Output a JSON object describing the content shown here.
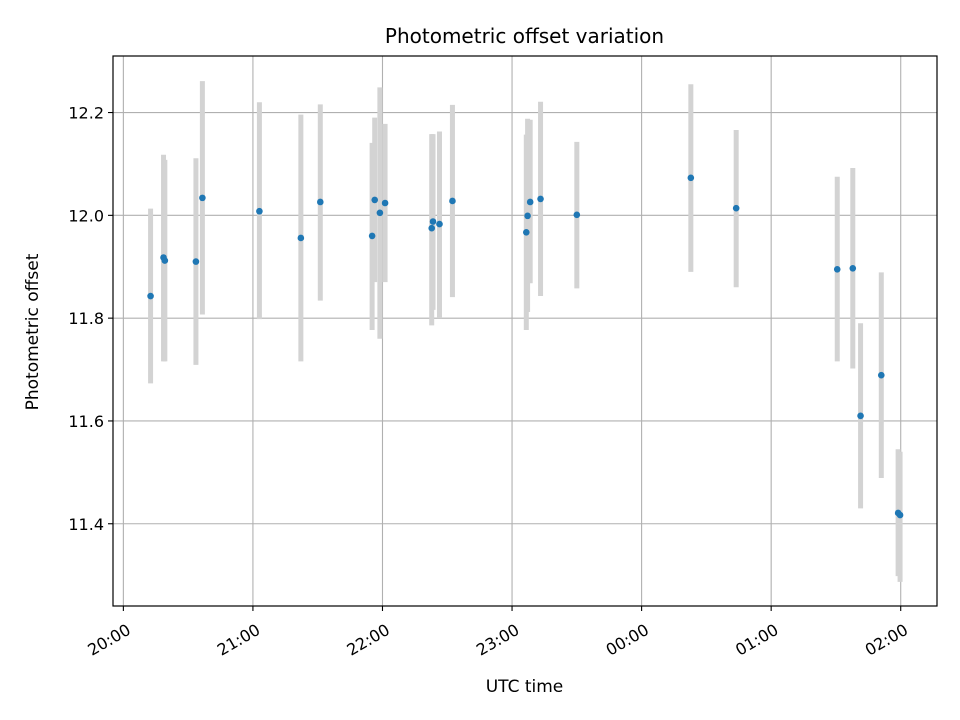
{
  "chart_data": {
    "type": "scatter",
    "title": "Photometric offset variation",
    "xlabel": "UTC time",
    "ylabel": "Photometric offset",
    "x_unit": "hours since 20:00 UTC",
    "xlim": [
      -0.08,
      6.28
    ],
    "ylim": [
      11.24,
      12.31
    ],
    "x_ticks": [
      {
        "value": 0,
        "label": "20:00"
      },
      {
        "value": 1,
        "label": "21:00"
      },
      {
        "value": 2,
        "label": "22:00"
      },
      {
        "value": 3,
        "label": "23:00"
      },
      {
        "value": 4,
        "label": "00:00"
      },
      {
        "value": 5,
        "label": "01:00"
      },
      {
        "value": 6,
        "label": "02:00"
      }
    ],
    "y_ticks": [
      {
        "value": 11.4,
        "label": "11.4"
      },
      {
        "value": 11.6,
        "label": "11.6"
      },
      {
        "value": 11.8,
        "label": "11.8"
      },
      {
        "value": 12.0,
        "label": "12.0"
      },
      {
        "value": 12.2,
        "label": "12.2"
      }
    ],
    "grid": true,
    "marker_color": "#1f77b4",
    "errorbar_color": "#d3d3d3",
    "points": [
      {
        "x": 0.21,
        "y": 11.843,
        "ylo": 11.673,
        "yhi": 12.013
      },
      {
        "x": 0.31,
        "y": 11.918,
        "ylo": 11.716,
        "yhi": 12.118
      },
      {
        "x": 0.32,
        "y": 11.912,
        "ylo": 11.716,
        "yhi": 12.108
      },
      {
        "x": 0.56,
        "y": 11.91,
        "ylo": 11.709,
        "yhi": 12.111
      },
      {
        "x": 0.61,
        "y": 12.034,
        "ylo": 11.807,
        "yhi": 12.261
      },
      {
        "x": 1.05,
        "y": 12.008,
        "ylo": 11.798,
        "yhi": 12.22
      },
      {
        "x": 1.37,
        "y": 11.956,
        "ylo": 11.716,
        "yhi": 12.196
      },
      {
        "x": 1.52,
        "y": 12.026,
        "ylo": 11.834,
        "yhi": 12.216
      },
      {
        "x": 1.92,
        "y": 11.96,
        "ylo": 11.777,
        "yhi": 12.141
      },
      {
        "x": 1.94,
        "y": 12.03,
        "ylo": 11.87,
        "yhi": 12.19
      },
      {
        "x": 1.98,
        "y": 12.005,
        "ylo": 11.76,
        "yhi": 12.249
      },
      {
        "x": 2.02,
        "y": 12.024,
        "ylo": 11.87,
        "yhi": 12.178
      },
      {
        "x": 2.38,
        "y": 11.975,
        "ylo": 11.786,
        "yhi": 12.158
      },
      {
        "x": 2.39,
        "y": 11.988,
        "ylo": 11.816,
        "yhi": 12.158
      },
      {
        "x": 2.44,
        "y": 11.983,
        "ylo": 11.8,
        "yhi": 12.163
      },
      {
        "x": 2.54,
        "y": 12.028,
        "ylo": 11.841,
        "yhi": 12.215
      },
      {
        "x": 3.11,
        "y": 11.967,
        "ylo": 11.777,
        "yhi": 12.157
      },
      {
        "x": 3.12,
        "y": 11.999,
        "ylo": 11.812,
        "yhi": 12.188
      },
      {
        "x": 3.14,
        "y": 12.026,
        "ylo": 11.868,
        "yhi": 12.186
      },
      {
        "x": 3.22,
        "y": 12.032,
        "ylo": 11.843,
        "yhi": 12.221
      },
      {
        "x": 3.5,
        "y": 12.001,
        "ylo": 11.858,
        "yhi": 12.143
      },
      {
        "x": 4.38,
        "y": 12.073,
        "ylo": 11.89,
        "yhi": 12.255
      },
      {
        "x": 4.73,
        "y": 12.014,
        "ylo": 11.86,
        "yhi": 12.166
      },
      {
        "x": 5.51,
        "y": 11.895,
        "ylo": 11.716,
        "yhi": 12.075
      },
      {
        "x": 5.63,
        "y": 11.897,
        "ylo": 11.702,
        "yhi": 12.092
      },
      {
        "x": 5.69,
        "y": 11.61,
        "ylo": 11.43,
        "yhi": 11.79
      },
      {
        "x": 5.85,
        "y": 11.689,
        "ylo": 11.489,
        "yhi": 11.889
      },
      {
        "x": 5.98,
        "y": 11.421,
        "ylo": 11.298,
        "yhi": 11.545
      },
      {
        "x": 5.995,
        "y": 11.417,
        "ylo": 11.287,
        "yhi": 11.54
      }
    ]
  }
}
